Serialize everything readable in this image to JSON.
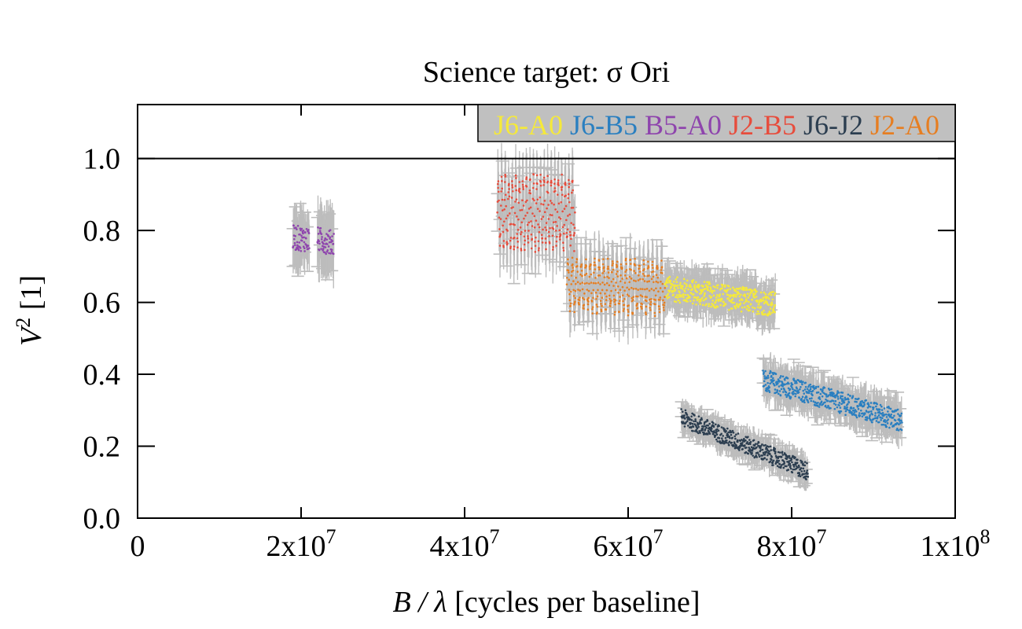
{
  "chart_data": {
    "type": "scatter",
    "title": "Science target: σ Ori",
    "xlabel": {
      "italic": "B / λ",
      "rest": " [cycles per baseline]"
    },
    "ylabel": {
      "italic": "V",
      "sup": "2",
      "rest": " [1]"
    },
    "xlim": [
      0,
      100000000
    ],
    "ylim": [
      0,
      1.15
    ],
    "x_ticks": [
      {
        "value": 0,
        "label": "0",
        "exp": ""
      },
      {
        "value": 20000000,
        "label": "2x10",
        "exp": "7"
      },
      {
        "value": 40000000,
        "label": "4x10",
        "exp": "7"
      },
      {
        "value": 60000000,
        "label": "6x10",
        "exp": "7"
      },
      {
        "value": 80000000,
        "label": "8x10",
        "exp": "7"
      },
      {
        "value": 100000000,
        "label": "1x10",
        "exp": "8"
      }
    ],
    "y_ticks": [
      {
        "value": 0.0,
        "label": "0.0"
      },
      {
        "value": 0.2,
        "label": "0.2"
      },
      {
        "value": 0.4,
        "label": "0.4"
      },
      {
        "value": 0.6,
        "label": "0.6"
      },
      {
        "value": 0.8,
        "label": "0.8"
      },
      {
        "value": 1.0,
        "label": "1.0"
      }
    ],
    "reference_line": 1.0,
    "grid": false,
    "legend_position": "top-right",
    "legend_background": "#c0c0c0",
    "errorbar_color": "#bdbdbd",
    "series": [
      {
        "name": "J6-A0",
        "color": "#f5e93a",
        "segments": [
          {
            "x": [
              64500000,
              78000000
            ],
            "y": [
              0.64,
              0.595
            ],
            "spread": 0.035,
            "err": 0.045
          }
        ]
      },
      {
        "name": "J6-B5",
        "color": "#2a7fc0",
        "segments": [
          {
            "x": [
              76500000,
              93500000
            ],
            "y": [
              0.385,
              0.27
            ],
            "spread": 0.03,
            "err": 0.04
          }
        ]
      },
      {
        "name": "B5-A0",
        "color": "#8e44ad",
        "segments": [
          {
            "x": [
              19000000,
              21000000
            ],
            "y": [
              0.78,
              0.775
            ],
            "spread": 0.035,
            "err": 0.06
          },
          {
            "x": [
              22000000,
              24000000
            ],
            "y": [
              0.775,
              0.765
            ],
            "spread": 0.035,
            "err": 0.07
          }
        ]
      },
      {
        "name": "J2-B5",
        "color": "#e74c3c",
        "segments": [
          {
            "x": [
              44000000,
              53500000
            ],
            "y": [
              0.85,
              0.85
            ],
            "spread": 0.11,
            "err": 0.07,
            "oscillate": true
          }
        ]
      },
      {
        "name": "J6-J2",
        "color": "#2c3e50",
        "segments": [
          {
            "x": [
              66500000,
              82000000
            ],
            "y": [
              0.28,
              0.13
            ],
            "spread": 0.025,
            "err": 0.03
          }
        ]
      },
      {
        "name": "J2-A0",
        "color": "#e67e22",
        "segments": [
          {
            "x": [
              52500000,
              64500000
            ],
            "y": [
              0.65,
              0.64
            ],
            "spread": 0.08,
            "err": 0.06,
            "oscillate": true
          }
        ]
      }
    ]
  }
}
